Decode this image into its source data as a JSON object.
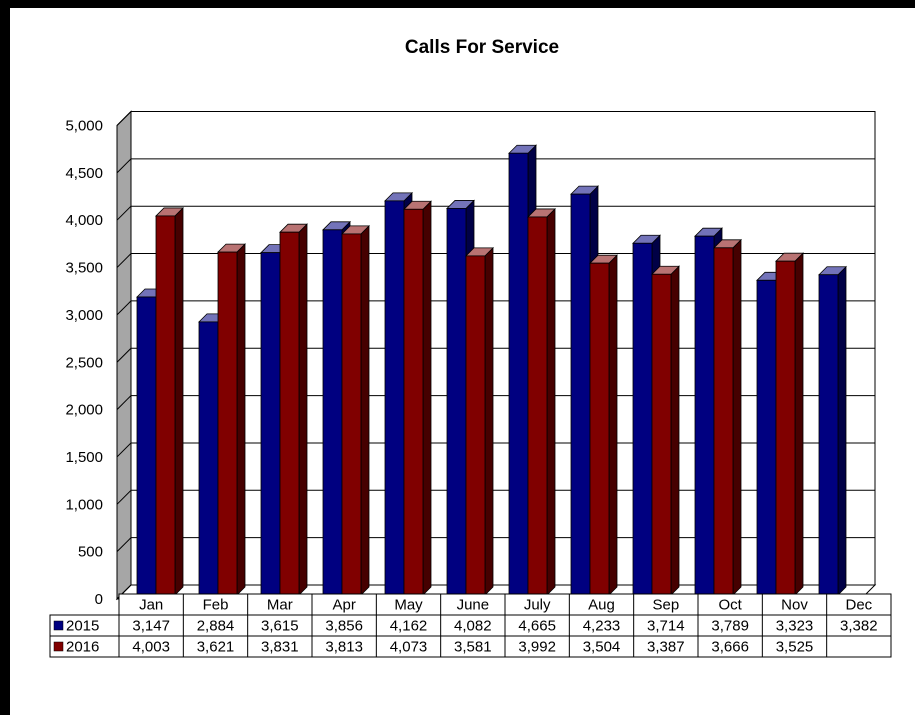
{
  "chart_data": {
    "type": "bar",
    "title": "Calls For Service",
    "categories": [
      "Jan",
      "Feb",
      "Mar",
      "Apr",
      "May",
      "June",
      "July",
      "Aug",
      "Sep",
      "Oct",
      "Nov",
      "Dec"
    ],
    "series": [
      {
        "name": "2015",
        "color": "#000080",
        "values": [
          3147,
          2884,
          3615,
          3856,
          4162,
          4082,
          4665,
          4233,
          3714,
          3789,
          3323,
          3382
        ],
        "labels": [
          "3,147",
          "2,884",
          "3,615",
          "3,856",
          "4,162",
          "4,082",
          "4,665",
          "4,233",
          "3,714",
          "3,789",
          "3,323",
          "3,382"
        ]
      },
      {
        "name": "2016",
        "color": "#800000",
        "values": [
          4003,
          3621,
          3831,
          3813,
          4073,
          3581,
          3992,
          3504,
          3387,
          3666,
          3525,
          null
        ],
        "labels": [
          "4,003",
          "3,621",
          "3,831",
          "3,813",
          "4,073",
          "3,581",
          "3,992",
          "3,504",
          "3,387",
          "3,666",
          "3,525",
          ""
        ]
      }
    ],
    "ylim": [
      0,
      5000
    ],
    "yticks": [
      0,
      500,
      1000,
      1500,
      2000,
      2500,
      3000,
      3500,
      4000,
      4500,
      5000
    ],
    "ytick_labels": [
      "0",
      "500",
      "1,000",
      "1,500",
      "2,000",
      "2,500",
      "3,000",
      "3,500",
      "4,000",
      "4,500",
      "5,000"
    ],
    "grid": true,
    "data_table": true,
    "style": "3d-clustered-column"
  }
}
